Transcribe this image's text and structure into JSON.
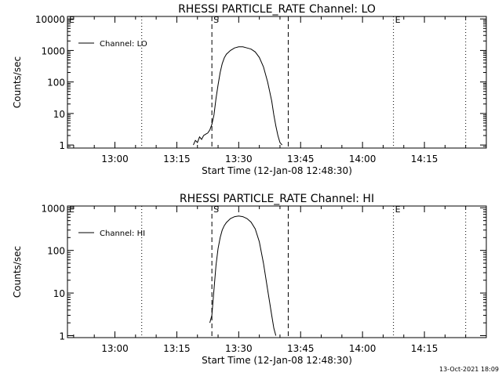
{
  "footer": {
    "timestamp": "13-Oct-2021 18:09"
  },
  "chart_data": [
    {
      "type": "line",
      "title": "RHESSI PARTICLE_RATE Channel: LO",
      "xlabel": "Start Time (12-Jan-08 12:48:30)",
      "ylabel": "Counts/sec",
      "yscale": "log",
      "xlim": [
        "12:48:30",
        "14:30:00"
      ],
      "ylim": [
        0.8,
        12000
      ],
      "xticks": [
        "13:00",
        "13:15",
        "13:30",
        "13:45",
        "14:00",
        "14:15"
      ],
      "yticks": [
        "1",
        "10",
        "100",
        "1000",
        "10000"
      ],
      "legend": {
        "position": "top-left",
        "entries": [
          "Channel: LO"
        ]
      },
      "markers": [
        {
          "time": "12:48:30",
          "label": "E",
          "style": "dotted"
        },
        {
          "time": "13:06:30",
          "label": "",
          "style": "dotted"
        },
        {
          "time": "13:23:30",
          "label": "S",
          "style": "dashed"
        },
        {
          "time": "13:42:00",
          "label": "",
          "style": "dashed"
        },
        {
          "time": "14:07:30",
          "label": "E",
          "style": "dotted"
        },
        {
          "time": "14:25:00",
          "label": "",
          "style": "dotted"
        }
      ],
      "series": [
        {
          "name": "Channel: LO",
          "x": [
            "13:19:00",
            "13:19:30",
            "13:20:00",
            "13:20:30",
            "13:21:00",
            "13:21:30",
            "13:22:00",
            "13:22:30",
            "13:23:00",
            "13:23:30",
            "13:24:00",
            "13:24:30",
            "13:25:00",
            "13:25:30",
            "13:26:00",
            "13:26:30",
            "13:27:00",
            "13:28:00",
            "13:29:00",
            "13:30:00",
            "13:31:00",
            "13:32:00",
            "13:33:00",
            "13:34:00",
            "13:35:00",
            "13:36:00",
            "13:37:00",
            "13:38:00",
            "13:38:30",
            "13:39:00",
            "13:39:30",
            "13:40:00",
            "13:40:30"
          ],
          "y": [
            1,
            1.4,
            1.2,
            1.8,
            1.5,
            2,
            2.2,
            2.4,
            3,
            4.5,
            9,
            30,
            80,
            200,
            380,
            580,
            760,
            1000,
            1200,
            1300,
            1300,
            1200,
            1100,
            900,
            600,
            300,
            100,
            25,
            9,
            4,
            2,
            1.2,
            1
          ]
        }
      ]
    },
    {
      "type": "line",
      "title": "RHESSI PARTICLE_RATE Channel: HI",
      "xlabel": "Start Time (12-Jan-08 12:48:30)",
      "ylabel": "Counts/sec",
      "yscale": "log",
      "xlim": [
        "12:48:30",
        "14:30:00"
      ],
      "ylim": [
        0.9,
        1100
      ],
      "xticks": [
        "13:00",
        "13:15",
        "13:30",
        "13:45",
        "14:00",
        "14:15"
      ],
      "yticks": [
        "1",
        "10",
        "100",
        "1000"
      ],
      "legend": {
        "position": "top-left",
        "entries": [
          "Channel: HI"
        ]
      },
      "markers": [
        {
          "time": "12:48:30",
          "label": "E",
          "style": "dotted"
        },
        {
          "time": "13:06:30",
          "label": "",
          "style": "dotted"
        },
        {
          "time": "13:23:30",
          "label": "S",
          "style": "dashed"
        },
        {
          "time": "13:42:00",
          "label": "",
          "style": "dashed"
        },
        {
          "time": "14:07:30",
          "label": "E",
          "style": "dotted"
        },
        {
          "time": "14:25:00",
          "label": "",
          "style": "dotted"
        }
      ],
      "series": [
        {
          "name": "Channel: HI",
          "x": [
            "13:23:00",
            "13:23:30",
            "13:24:00",
            "13:24:30",
            "13:25:00",
            "13:25:30",
            "13:26:00",
            "13:26:30",
            "13:27:00",
            "13:28:00",
            "13:29:00",
            "13:30:00",
            "13:31:00",
            "13:32:00",
            "13:33:00",
            "13:34:00",
            "13:35:00",
            "13:36:00",
            "13:37:00",
            "13:38:00",
            "13:38:30",
            "13:39:00"
          ],
          "y": [
            2,
            3,
            12,
            45,
            110,
            200,
            300,
            380,
            450,
            560,
            620,
            640,
            620,
            560,
            460,
            320,
            160,
            50,
            12,
            3,
            1.5,
            1
          ]
        }
      ]
    }
  ]
}
